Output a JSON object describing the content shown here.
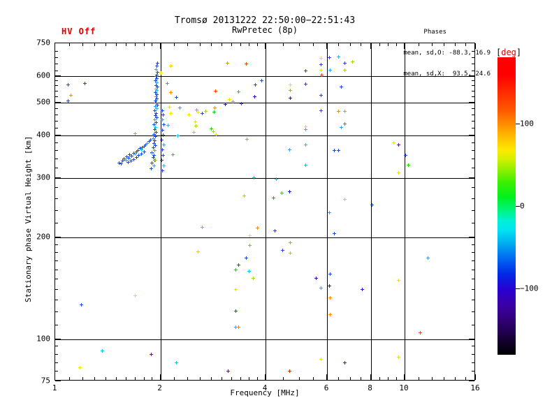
{
  "header": {
    "hv_status": "HV Off",
    "title_line1": "Tromsø 20131222 22:50:00−22:51:43",
    "title_line2": "RwPretec (8p)",
    "phases_title": "Phases",
    "phases_line_o": "mean, sd,O: -88.3, 16.9",
    "phases_line_x": "mean, sd,X:  93.5, 24.6"
  },
  "chart_data": {
    "type": "scatter",
    "title": "Tromsø 20131222 22:50:00−22:51:43",
    "subtitle": "RwPretec (8p)",
    "xlabel": "Frequency [MHz]",
    "ylabel": "Stationary phase Virtual Height [km]",
    "x_scale": "log",
    "y_scale": "log",
    "xlim": [
      1,
      16
    ],
    "ylim": [
      75,
      750
    ],
    "x_ticks_labeled": [
      1,
      2,
      4,
      6,
      8,
      10,
      16
    ],
    "x_minor_ticks": [
      1.1,
      1.2,
      1.3,
      1.4,
      1.5,
      1.6,
      1.7,
      1.8,
      1.9,
      2.2,
      2.4,
      2.6,
      2.8,
      3.0,
      3.2,
      3.4,
      3.6,
      3.8,
      4.5,
      5.0,
      5.5,
      6.5,
      7.0,
      7.5,
      8.5,
      9.0,
      9.5,
      11,
      12,
      13,
      14,
      15
    ],
    "x_gridlines": [
      2,
      4,
      6,
      8,
      10
    ],
    "y_ticks_labeled": [
      75,
      100,
      200,
      300,
      400,
      500,
      600,
      750
    ],
    "y_minor_ticks": [
      80,
      85,
      90,
      95,
      110,
      120,
      130,
      140,
      150,
      160,
      170,
      180,
      190,
      220,
      240,
      260,
      280,
      320,
      340,
      360,
      380,
      420,
      440,
      460,
      480,
      520,
      540,
      560,
      580,
      620,
      650,
      680,
      710
    ],
    "y_gridlines": [
      100,
      200,
      300,
      400,
      500,
      600
    ],
    "grid": true,
    "legend_position": "none",
    "colorbar": {
      "label_open": "[",
      "label_text": "deg",
      "label_close": "]",
      "ticks": [
        100,
        0,
        -100
      ],
      "value_top": 180,
      "value_bottom": -180
    },
    "palette": {
      "B": "#1e49e0",
      "LB": "#3e9df2",
      "C": "#17c3ee",
      "N": "#2513bd",
      "P": "#5f10b0",
      "G": "#2fcb1c",
      "SG": "#9cdc10",
      "Y": "#ece400",
      "OY": "#ffc400",
      "O": "#ff8a00",
      "RO": "#ff4600",
      "R": "#ff1e00"
    },
    "points_format": [
      "freq_mhz",
      "height_km",
      "phase_color_key"
    ],
    "points": [
      [
        1.97,
        655,
        "B"
      ],
      [
        1.96,
        641,
        "B"
      ],
      [
        1.95,
        627,
        "LB"
      ],
      [
        1.97,
        615,
        "B"
      ],
      [
        1.96,
        604,
        "B"
      ],
      [
        1.95,
        597,
        "B"
      ],
      [
        1.96,
        589,
        "B"
      ],
      [
        1.94,
        579,
        "B"
      ],
      [
        1.96,
        571,
        "LB"
      ],
      [
        1.95,
        562,
        "B"
      ],
      [
        1.97,
        556,
        "B"
      ],
      [
        1.95,
        549,
        "B"
      ],
      [
        1.96,
        542,
        "C"
      ],
      [
        1.94,
        535,
        "B"
      ],
      [
        1.96,
        527,
        "B"
      ],
      [
        1.95,
        519,
        "LB"
      ],
      [
        1.96,
        512,
        "B"
      ],
      [
        1.94,
        505,
        "B"
      ],
      [
        1.95,
        499,
        "B"
      ],
      [
        1.97,
        492,
        "B"
      ],
      [
        1.94,
        486,
        "LB"
      ],
      [
        1.96,
        479,
        "C"
      ],
      [
        1.93,
        472,
        "B"
      ],
      [
        1.95,
        465,
        "B"
      ],
      [
        1.94,
        458,
        "B"
      ],
      [
        1.96,
        451,
        "B"
      ],
      [
        1.93,
        444,
        "LB"
      ],
      [
        1.95,
        437,
        "B"
      ],
      [
        1.92,
        429,
        "B"
      ],
      [
        1.94,
        422,
        "C"
      ],
      [
        1.93,
        415,
        "B"
      ],
      [
        1.95,
        409,
        "B"
      ],
      [
        1.92,
        403,
        "B"
      ],
      [
        1.94,
        397,
        "B"
      ],
      [
        1.91,
        391,
        "LB"
      ],
      [
        1.93,
        385,
        "B"
      ],
      [
        1.92,
        379,
        "B"
      ],
      [
        1.94,
        373,
        "B"
      ],
      [
        1.91,
        367,
        "B"
      ],
      [
        1.93,
        361,
        "C"
      ],
      [
        1.9,
        355,
        "B"
      ],
      [
        1.92,
        349,
        "B"
      ],
      [
        1.91,
        343,
        "B"
      ],
      [
        1.93,
        337,
        "B"
      ],
      [
        1.9,
        331,
        "B"
      ],
      [
        1.92,
        325,
        "LB"
      ],
      [
        1.89,
        319,
        "B"
      ],
      [
        2.03,
        474,
        "B"
      ],
      [
        2.04,
        459,
        "B"
      ],
      [
        2.03,
        445,
        "LB"
      ],
      [
        2.05,
        430,
        "B"
      ],
      [
        2.03,
        414,
        "B"
      ],
      [
        2.04,
        400,
        "B"
      ],
      [
        2.02,
        388,
        "B"
      ],
      [
        2.05,
        375,
        "LB"
      ],
      [
        2.03,
        362,
        "B"
      ],
      [
        2.04,
        349,
        "B"
      ],
      [
        2.02,
        337,
        "B"
      ],
      [
        2.05,
        325,
        "C"
      ],
      [
        2.03,
        314,
        "B"
      ],
      [
        1.53,
        331,
        "B"
      ],
      [
        1.55,
        329,
        "B"
      ],
      [
        1.56,
        336,
        "B"
      ],
      [
        1.58,
        341,
        "B"
      ],
      [
        1.6,
        338,
        "LB"
      ],
      [
        1.61,
        345,
        "B"
      ],
      [
        1.63,
        342,
        "B"
      ],
      [
        1.64,
        350,
        "B"
      ],
      [
        1.66,
        347,
        "B"
      ],
      [
        1.68,
        354,
        "B"
      ],
      [
        1.7,
        352,
        "LB"
      ],
      [
        1.71,
        358,
        "B"
      ],
      [
        1.73,
        361,
        "B"
      ],
      [
        1.75,
        365,
        "B"
      ],
      [
        1.77,
        362,
        "C"
      ],
      [
        1.78,
        368,
        "B"
      ],
      [
        1.8,
        371,
        "B"
      ],
      [
        1.82,
        375,
        "B"
      ],
      [
        1.84,
        379,
        "LB"
      ],
      [
        1.86,
        383,
        "B"
      ],
      [
        1.88,
        388,
        "B"
      ],
      [
        1.62,
        332,
        "B"
      ],
      [
        1.65,
        335,
        "B"
      ],
      [
        1.68,
        339,
        "B"
      ],
      [
        1.71,
        344,
        "B"
      ],
      [
        1.74,
        348,
        "B"
      ],
      [
        1.77,
        352,
        "B"
      ],
      [
        1.8,
        357,
        "B"
      ],
      [
        1.95,
        548,
        "O"
      ],
      [
        2.01,
        612,
        "Y"
      ],
      [
        2.15,
        640,
        "OY"
      ],
      [
        1.94,
        337,
        "SG"
      ],
      [
        2.18,
        350,
        "G"
      ],
      [
        1.7,
        405,
        "O"
      ],
      [
        2.13,
        485,
        "Y"
      ],
      [
        2.11,
        427,
        "C"
      ],
      [
        2.15,
        463,
        "Y"
      ],
      [
        1.9,
        354,
        "O"
      ],
      [
        2.1,
        568,
        "LB"
      ],
      [
        2.15,
        535,
        "O"
      ],
      [
        2.23,
        517,
        "B"
      ],
      [
        2.28,
        482,
        "LB"
      ],
      [
        2.25,
        398,
        "C"
      ],
      [
        2.42,
        460,
        "Y"
      ],
      [
        2.5,
        408,
        "SG"
      ],
      [
        2.52,
        438,
        "Y"
      ],
      [
        2.55,
        475,
        "O"
      ],
      [
        2.57,
        468,
        "Y"
      ],
      [
        2.64,
        464,
        "B"
      ],
      [
        2.7,
        470,
        "SG"
      ],
      [
        2.87,
        481,
        "O"
      ],
      [
        2.86,
        468,
        "G"
      ],
      [
        3.07,
        493,
        "N"
      ],
      [
        3.16,
        510,
        "Y"
      ],
      [
        3.23,
        502,
        "O"
      ],
      [
        2.88,
        540,
        "RO"
      ],
      [
        3.36,
        537,
        "G"
      ],
      [
        3.42,
        495,
        "B"
      ],
      [
        3.53,
        650,
        "RO"
      ],
      [
        3.12,
        655,
        "O"
      ],
      [
        3.75,
        563,
        "B"
      ],
      [
        3.9,
        580,
        "B"
      ],
      [
        3.73,
        519,
        "N"
      ],
      [
        4.72,
        563,
        "Y"
      ],
      [
        4.72,
        544,
        "O"
      ],
      [
        4.72,
        515,
        "N"
      ],
      [
        2.8,
        417,
        "G"
      ],
      [
        2.84,
        410,
        "SG"
      ],
      [
        2.9,
        402,
        "Y"
      ],
      [
        2.54,
        425,
        "SG"
      ],
      [
        3.55,
        390,
        "O"
      ],
      [
        4.7,
        362,
        "LB"
      ],
      [
        5.78,
        675,
        "Y"
      ],
      [
        6.11,
        678,
        "B"
      ],
      [
        6.49,
        681,
        "C"
      ],
      [
        6.76,
        653,
        "B"
      ],
      [
        7.11,
        659,
        "SG"
      ],
      [
        6.76,
        622,
        "SG"
      ],
      [
        5.22,
        619,
        "B"
      ],
      [
        5.78,
        647,
        "B"
      ],
      [
        5.78,
        622,
        "Y"
      ],
      [
        5.8,
        603,
        "RO"
      ],
      [
        6.13,
        622,
        "LB"
      ],
      [
        5.22,
        566,
        "B"
      ],
      [
        6.61,
        555,
        "B"
      ],
      [
        5.78,
        524,
        "B"
      ],
      [
        5.78,
        474,
        "B"
      ],
      [
        6.49,
        470,
        "O"
      ],
      [
        6.76,
        470,
        "O"
      ],
      [
        6.76,
        432,
        "RO"
      ],
      [
        6.61,
        422,
        "LB"
      ],
      [
        5.22,
        424,
        "Y"
      ],
      [
        5.22,
        416,
        "C"
      ],
      [
        9.33,
        380,
        "Y"
      ],
      [
        9.64,
        374,
        "P"
      ],
      [
        5.22,
        374,
        "C"
      ],
      [
        6.31,
        360,
        "B"
      ],
      [
        6.49,
        360,
        "B"
      ],
      [
        5.22,
        327,
        "C"
      ],
      [
        10.1,
        349,
        "B"
      ],
      [
        10.3,
        326,
        "G"
      ],
      [
        9.64,
        310,
        "Y"
      ],
      [
        6.76,
        258,
        "OY"
      ],
      [
        8.09,
        249,
        "B"
      ],
      [
        6.11,
        236,
        "LB"
      ],
      [
        6.31,
        205,
        "B"
      ],
      [
        11.7,
        173,
        "LB"
      ],
      [
        3.71,
        299,
        "C"
      ],
      [
        4.31,
        297,
        "C"
      ],
      [
        3.48,
        265,
        "SG"
      ],
      [
        4.23,
        261,
        "RO"
      ],
      [
        4.47,
        270,
        "G"
      ],
      [
        4.7,
        272,
        "N"
      ],
      [
        2.64,
        214,
        "O"
      ],
      [
        3.8,
        213,
        "O"
      ],
      [
        4.27,
        209,
        "B"
      ],
      [
        3.61,
        202,
        "Y"
      ],
      [
        2.57,
        181,
        "OY"
      ],
      [
        3.61,
        189,
        "O"
      ],
      [
        4.49,
        183,
        "B"
      ],
      [
        4.72,
        192,
        "O"
      ],
      [
        4.72,
        179,
        "SG"
      ],
      [
        3.53,
        173,
        "B"
      ],
      [
        3.36,
        165,
        "B"
      ],
      [
        3.59,
        158,
        "C"
      ],
      [
        3.3,
        160,
        "G"
      ],
      [
        3.7,
        151,
        "SG"
      ],
      [
        5.6,
        151,
        "N"
      ],
      [
        6.13,
        155,
        "B"
      ],
      [
        5.78,
        141,
        "LB"
      ],
      [
        6.11,
        143,
        "N"
      ],
      [
        7.59,
        140,
        "N"
      ],
      [
        6.13,
        132,
        "O"
      ],
      [
        6.13,
        118,
        "O"
      ],
      [
        9.64,
        149,
        "Y"
      ],
      [
        11.1,
        104,
        "RO"
      ],
      [
        5.78,
        87,
        "Y"
      ],
      [
        6.76,
        85,
        "P"
      ],
      [
        9.64,
        88,
        "Y"
      ],
      [
        4.7,
        80,
        "R"
      ],
      [
        1.19,
        126,
        "B"
      ],
      [
        1.7,
        134,
        "Y"
      ],
      [
        3.3,
        140,
        "Y"
      ],
      [
        3.3,
        121,
        "B"
      ],
      [
        3.3,
        108,
        "LB"
      ],
      [
        3.36,
        108,
        "O"
      ],
      [
        1.37,
        92,
        "C"
      ],
      [
        1.89,
        90,
        "P"
      ],
      [
        1.18,
        82,
        "Y"
      ],
      [
        2.23,
        85,
        "C"
      ],
      [
        3.13,
        80,
        "P"
      ],
      [
        1.09,
        565,
        "B"
      ],
      [
        1.22,
        568,
        "B"
      ],
      [
        1.11,
        524,
        "O"
      ],
      [
        1.09,
        506,
        "B"
      ]
    ]
  }
}
